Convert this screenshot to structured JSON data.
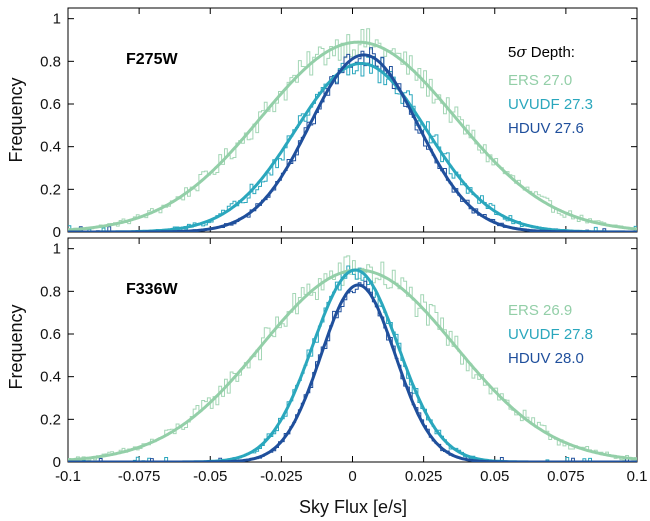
{
  "colors": {
    "ERS": "#93cfa8",
    "UVUDF": "#2aa7bd",
    "HDUV": "#1f4f9c"
  },
  "chart_data": [
    {
      "type": "line",
      "panel": "F275W",
      "filter_label": "F275W",
      "legend_title": "5σ Depth:",
      "legend_title_prefix": "5",
      "legend_title_sigma": "σ",
      "legend_title_suffix": " Depth:",
      "xlim": [
        -0.1,
        0.1
      ],
      "ylim": [
        0,
        1.05
      ],
      "xticks": [],
      "yticks": [
        0,
        0.2,
        0.4,
        0.6,
        0.8,
        1
      ],
      "ytick_labels": [
        "0",
        "0.2",
        "0.4",
        "0.6",
        "0.8",
        "1"
      ],
      "ylabel": "Frequency",
      "legend_position": "top-right",
      "series": [
        {
          "name": "ERS 27.0",
          "key": "ERS",
          "fit": {
            "amp": 0.89,
            "mu": 0.002,
            "sigma": 0.034
          },
          "hist_noise": 0.07
        },
        {
          "name": "UVUDF 27.3",
          "key": "UVUDF",
          "fit": {
            "amp": 0.79,
            "mu": 0.003,
            "sigma": 0.023
          },
          "hist_noise": 0.07
        },
        {
          "name": "HDUV 27.6",
          "key": "HDUV",
          "fit": {
            "amp": 0.83,
            "mu": 0.004,
            "sigma": 0.019
          },
          "hist_noise": 0.05
        }
      ]
    },
    {
      "type": "line",
      "panel": "F336W",
      "filter_label": "F336W",
      "xlim": [
        -0.1,
        0.1
      ],
      "ylim": [
        0,
        1.05
      ],
      "xticks": [
        -0.1,
        -0.075,
        -0.05,
        -0.025,
        0,
        0.025,
        0.05,
        0.075,
        0.1
      ],
      "xtick_labels": [
        "-0.1",
        "-0.075",
        "-0.05",
        "-0.025",
        "0",
        "0.025",
        "0.05",
        "0.075",
        "0.1"
      ],
      "yticks": [
        0,
        0.2,
        0.4,
        0.6,
        0.8,
        1
      ],
      "ytick_labels": [
        "0",
        "0.2",
        "0.4",
        "0.6",
        "0.8",
        "1"
      ],
      "xlabel": "Sky Flux [e/s]",
      "ylabel": "Frequency",
      "legend_position": "right",
      "series": [
        {
          "name": "ERS 26.9",
          "key": "ERS",
          "fit": {
            "amp": 0.9,
            "mu": 0.002,
            "sigma": 0.034
          },
          "hist_noise": 0.08
        },
        {
          "name": "UVUDF 27.8",
          "key": "UVUDF",
          "fit": {
            "amp": 0.9,
            "mu": 0.001,
            "sigma": 0.015
          },
          "hist_noise": 0.05
        },
        {
          "name": "HDUV 28.0",
          "key": "HDUV",
          "fit": {
            "amp": 0.83,
            "mu": 0.002,
            "sigma": 0.013
          },
          "hist_noise": 0.04
        }
      ]
    }
  ]
}
